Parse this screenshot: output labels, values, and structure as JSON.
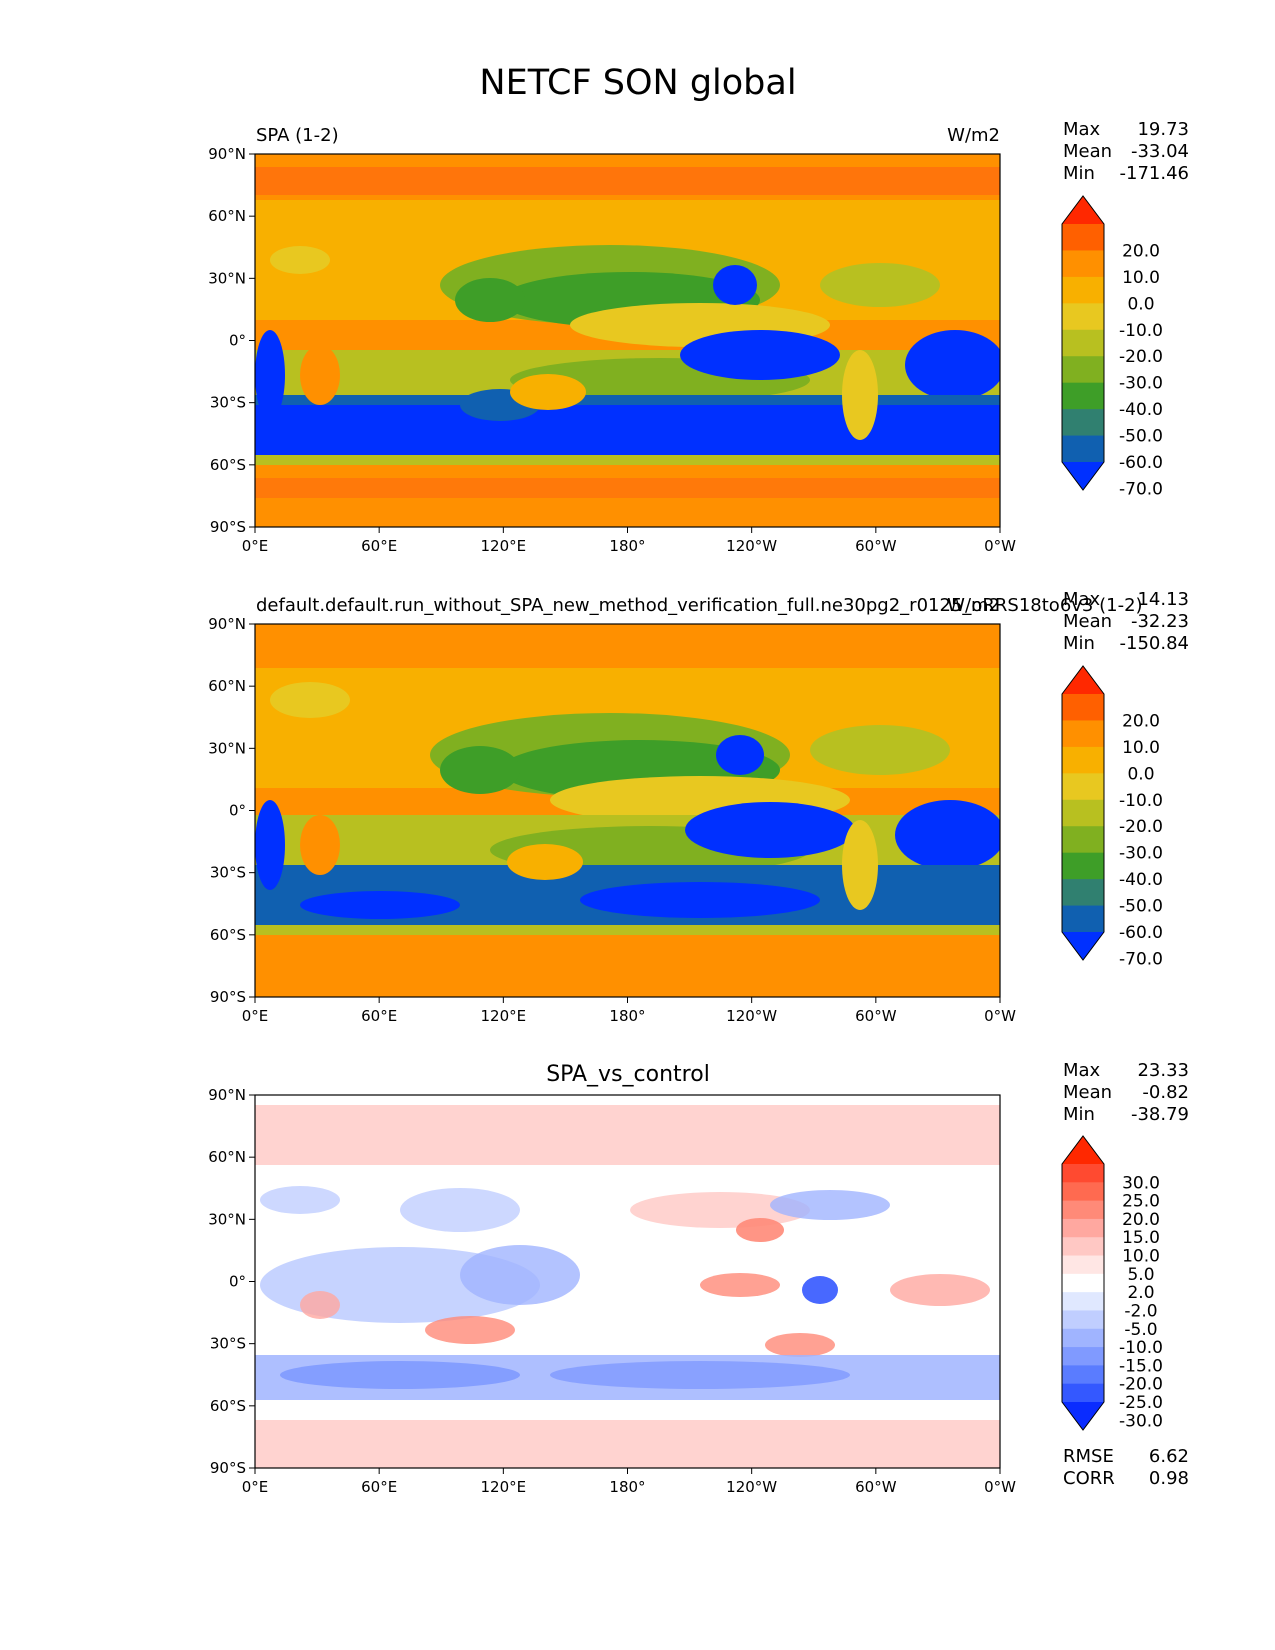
{
  "title": "NETCF SON global",
  "x_ticks": [
    "0°E",
    "60°E",
    "120°E",
    "180°",
    "120°W",
    "60°W",
    "0°W"
  ],
  "y_ticks": [
    "90°N",
    "60°N",
    "30°N",
    "0°",
    "30°S",
    "60°S",
    "90°S"
  ],
  "stat_labels": {
    "max": "Max",
    "mean": "Mean",
    "min": "Min",
    "rmse": "RMSE",
    "corr": "CORR"
  },
  "panels": [
    {
      "left_title": "SPA (1-2)",
      "center_title": "",
      "right_title": "W/m2",
      "stats": {
        "max": "19.73",
        "mean": "-33.04",
        "min": "-171.46"
      },
      "colorbar_labels": [
        "20.0",
        "10.0",
        "0.0",
        "-10.0",
        "-20.0",
        "-30.0",
        "-40.0",
        "-50.0",
        "-60.0",
        "-70.0"
      ],
      "colorbar_colors": [
        "#ff2800",
        "#ff6000",
        "#ff9000",
        "#f8b000",
        "#e8c820",
        "#b8c020",
        "#80b020",
        "#3e9e28",
        "#308070",
        "#1060b0",
        "#0030ff"
      ]
    },
    {
      "left_title": "default.default.run_without_SPA_new_method_verification_full.ne30pg2_r0125_oRRS18to6v3 (1-2)",
      "center_title": "",
      "right_title": "W/m2",
      "stats": {
        "max": "14.13",
        "mean": "-32.23",
        "min": "-150.84"
      },
      "colorbar_labels": [
        "20.0",
        "10.0",
        "0.0",
        "-10.0",
        "-20.0",
        "-30.0",
        "-40.0",
        "-50.0",
        "-60.0",
        "-70.0"
      ],
      "colorbar_colors": [
        "#ff2800",
        "#ff6000",
        "#ff9000",
        "#f8b000",
        "#e8c820",
        "#b8c020",
        "#80b020",
        "#3e9e28",
        "#308070",
        "#1060b0",
        "#0030ff"
      ]
    },
    {
      "left_title": "",
      "center_title": "SPA_vs_control",
      "right_title": "",
      "stats": {
        "max": "23.33",
        "mean": "-0.82",
        "min": "-38.79",
        "rmse": "6.62",
        "corr": "0.98"
      },
      "colorbar_labels": [
        "30.0",
        "25.0",
        "20.0",
        "15.0",
        "10.0",
        "5.0",
        "2.0",
        "-2.0",
        "-5.0",
        "-10.0",
        "-15.0",
        "-20.0",
        "-25.0",
        "-30.0"
      ],
      "colorbar_colors": [
        "#ff2800",
        "#ff4a30",
        "#ff6a50",
        "#ff8a78",
        "#ffa8a0",
        "#ffc8c4",
        "#ffe6e4",
        "#ffffff",
        "#e0e8ff",
        "#c0ceff",
        "#a0b4ff",
        "#809aff",
        "#5a7cff",
        "#3458ff",
        "#0a2cff"
      ]
    }
  ],
  "chart_data": {
    "type": "heatmap",
    "title": "NETCF SON global",
    "xlim": [
      0,
      360
    ],
    "ylim": [
      -90,
      90
    ],
    "units": "W/m2",
    "maps": [
      {
        "name": "SPA (1-2)",
        "max": 19.73,
        "mean": -33.04,
        "min": -171.46,
        "levels": [
          -70,
          -60,
          -50,
          -40,
          -30,
          -20,
          -10,
          0,
          10,
          20
        ]
      },
      {
        "name": "default.default.run_without_SPA_new_method_verification_full.ne30pg2_r0125_oRRS18to6v3 (1-2)",
        "max": 14.13,
        "mean": -32.23,
        "min": -150.84,
        "levels": [
          -70,
          -60,
          -50,
          -40,
          -30,
          -20,
          -10,
          0,
          10,
          20
        ]
      },
      {
        "name": "SPA_vs_control",
        "max": 23.33,
        "mean": -0.82,
        "min": -38.79,
        "rmse": 6.62,
        "corr": 0.98,
        "levels": [
          -30,
          -25,
          -20,
          -15,
          -10,
          -5,
          -2,
          2,
          5,
          10,
          15,
          20,
          25,
          30
        ]
      }
    ]
  }
}
